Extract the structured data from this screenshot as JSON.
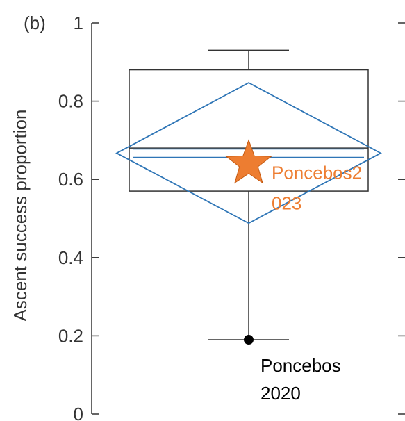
{
  "chart_data": {
    "type": "box",
    "panel_label": "(b)",
    "ylabel": "Ascent success proportion",
    "ylim": [
      0,
      1
    ],
    "yticks": [
      0,
      0.2,
      0.4,
      0.6,
      0.8,
      1
    ],
    "ytick_labels": [
      "0",
      "0.2",
      "0.4",
      "0.6",
      "0.8",
      "1"
    ],
    "grid": false,
    "box": {
      "whisker_low": 0.19,
      "q1": 0.57,
      "median": 0.68,
      "q3": 0.88,
      "whisker_high": 0.93
    },
    "mean_diamond": {
      "mean": 0.667,
      "upper": 0.847,
      "lower": 0.488
    },
    "points": [
      {
        "label": "Poncebos\n2020",
        "y": 0.19,
        "marker": "circle",
        "color": "#000000"
      },
      {
        "label": "Poncebos2\n023",
        "y": 0.64,
        "marker": "star",
        "color": "#ED7D31"
      }
    ],
    "colors": {
      "box": "#333333",
      "diamond": "#2E75B6",
      "star": "#ED7D31",
      "star_label": "#ED7D31",
      "point": "#000000"
    }
  }
}
